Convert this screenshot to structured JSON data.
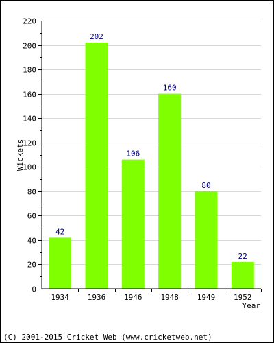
{
  "chart_data": {
    "type": "bar",
    "categories": [
      "1934",
      "1936",
      "1946",
      "1948",
      "1949",
      "1952"
    ],
    "values": [
      42,
      202,
      106,
      160,
      80,
      22
    ],
    "ylabel": "Wickets",
    "xlabel": "Year",
    "ylim": [
      0,
      220
    ],
    "yticks": [
      0,
      20,
      40,
      60,
      80,
      100,
      120,
      140,
      160,
      180,
      200,
      220
    ],
    "grid": "horizontal",
    "bar_color": "#80ff00",
    "value_label_color": "#000080"
  },
  "footer": {
    "copyright": "(C) 2001-2015 Cricket Web (www.cricketweb.net)"
  }
}
